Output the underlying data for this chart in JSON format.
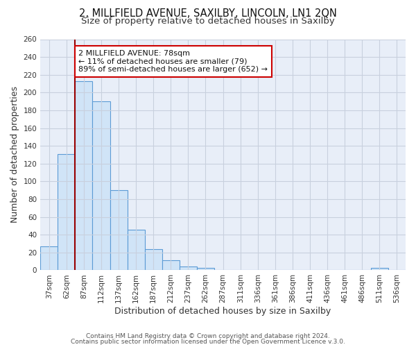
{
  "title": "2, MILLFIELD AVENUE, SAXILBY, LINCOLN, LN1 2QN",
  "subtitle": "Size of property relative to detached houses in Saxilby",
  "xlabel": "Distribution of detached houses by size in Saxilby",
  "ylabel": "Number of detached properties",
  "bar_labels": [
    "37sqm",
    "62sqm",
    "87sqm",
    "112sqm",
    "137sqm",
    "162sqm",
    "187sqm",
    "212sqm",
    "237sqm",
    "262sqm",
    "287sqm",
    "311sqm",
    "336sqm",
    "361sqm",
    "386sqm",
    "411sqm",
    "436sqm",
    "461sqm",
    "486sqm",
    "511sqm",
    "536sqm"
  ],
  "bar_values": [
    27,
    131,
    213,
    190,
    90,
    46,
    24,
    11,
    4,
    3,
    0,
    0,
    0,
    0,
    0,
    0,
    0,
    0,
    0,
    3,
    0
  ],
  "bar_color": "#d0e4f7",
  "bar_edge_color": "#5b9bd5",
  "vline_color": "#990000",
  "annotation_title": "2 MILLFIELD AVENUE: 78sqm",
  "annotation_line1": "← 11% of detached houses are smaller (79)",
  "annotation_line2": "89% of semi-detached houses are larger (652) →",
  "annotation_box_color": "#ffffff",
  "annotation_box_edge": "#cc0000",
  "ylim": [
    0,
    260
  ],
  "yticks": [
    0,
    20,
    40,
    60,
    80,
    100,
    120,
    140,
    160,
    180,
    200,
    220,
    240,
    260
  ],
  "footer1": "Contains HM Land Registry data © Crown copyright and database right 2024.",
  "footer2": "Contains public sector information licensed under the Open Government Licence v.3.0.",
  "bg_color": "#e8eef8",
  "grid_color": "#c8d0de",
  "fig_bg_color": "#ffffff",
  "title_fontsize": 10.5,
  "subtitle_fontsize": 9.5,
  "tick_fontsize": 7.5,
  "ylabel_fontsize": 9,
  "xlabel_fontsize": 9,
  "footer_fontsize": 6.5
}
